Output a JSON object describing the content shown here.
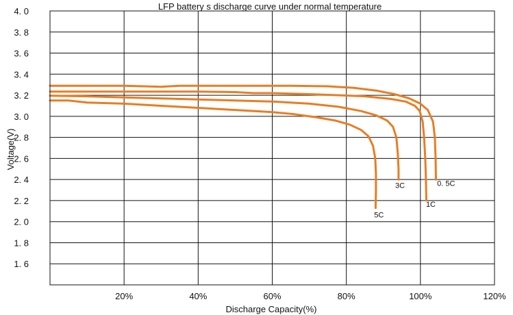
{
  "chart_data": {
    "type": "line",
    "title": "LFP battery    s discharge curve under normal temperature",
    "xlabel": "Discharge  Capacity(%)",
    "ylabel": "Voltage(V)",
    "xlim": [
      0,
      120
    ],
    "ylim": [
      1.4,
      4.0
    ],
    "x_ticks": [
      20,
      40,
      60,
      80,
      100,
      120
    ],
    "x_tick_labels": [
      "20%",
      "40%",
      "60%",
      "80%",
      "100%",
      "120%"
    ],
    "y_ticks": [
      1.6,
      1.8,
      2.0,
      2.2,
      2.4,
      2.6,
      2.8,
      3.0,
      3.2,
      3.4,
      3.6,
      3.8,
      4.0
    ],
    "y_tick_labels": [
      "1. 6",
      "1. 8",
      "2. 0",
      "2. 2",
      "2. 4",
      "2. 6",
      "2. 8",
      "3. 0",
      "3. 2",
      "3. 4",
      "3. 6",
      "3. 8",
      "4. 0"
    ],
    "grid": true,
    "line_color": "#e87d22",
    "series": [
      {
        "name": "0. 5C",
        "label_at": [
          104.5,
          2.34
        ],
        "points": [
          [
            0,
            3.29
          ],
          [
            10,
            3.29
          ],
          [
            20,
            3.29
          ],
          [
            30,
            3.28
          ],
          [
            35,
            3.29
          ],
          [
            45,
            3.29
          ],
          [
            55,
            3.29
          ],
          [
            65,
            3.29
          ],
          [
            75,
            3.285
          ],
          [
            82,
            3.27
          ],
          [
            88,
            3.245
          ],
          [
            93,
            3.21
          ],
          [
            97,
            3.17
          ],
          [
            100,
            3.12
          ],
          [
            102,
            3.06
          ],
          [
            103.4,
            2.95
          ],
          [
            103.9,
            2.8
          ],
          [
            104.1,
            2.6
          ],
          [
            104.2,
            2.4
          ]
        ]
      },
      {
        "name": "1C",
        "label_at": [
          101.5,
          2.14
        ],
        "points": [
          [
            0,
            3.235
          ],
          [
            10,
            3.235
          ],
          [
            20,
            3.235
          ],
          [
            30,
            3.235
          ],
          [
            40,
            3.235
          ],
          [
            50,
            3.23
          ],
          [
            55,
            3.22
          ],
          [
            60,
            3.22
          ],
          [
            70,
            3.21
          ],
          [
            78,
            3.2
          ],
          [
            85,
            3.19
          ],
          [
            92,
            3.165
          ],
          [
            96,
            3.14
          ],
          [
            98.5,
            3.1
          ],
          [
            99.8,
            3.05
          ],
          [
            100.6,
            2.95
          ],
          [
            101,
            2.8
          ],
          [
            101.3,
            2.6
          ],
          [
            101.5,
            2.4
          ],
          [
            101.6,
            2.2
          ]
        ]
      },
      {
        "name": "3C",
        "label_at": [
          93.2,
          2.32
        ],
        "points": [
          [
            0,
            3.195
          ],
          [
            10,
            3.19
          ],
          [
            20,
            3.18
          ],
          [
            30,
            3.17
          ],
          [
            40,
            3.16
          ],
          [
            50,
            3.15
          ],
          [
            60,
            3.14
          ],
          [
            70,
            3.12
          ],
          [
            78,
            3.09
          ],
          [
            84,
            3.05
          ],
          [
            88,
            3.01
          ],
          [
            91,
            2.96
          ],
          [
            92.6,
            2.9
          ],
          [
            93.5,
            2.8
          ],
          [
            93.9,
            2.65
          ],
          [
            94.1,
            2.5
          ],
          [
            94.1,
            2.4
          ]
        ]
      },
      {
        "name": "5C",
        "label_at": [
          87.5,
          2.04
        ],
        "points": [
          [
            0,
            3.15
          ],
          [
            5,
            3.15
          ],
          [
            10,
            3.13
          ],
          [
            20,
            3.12
          ],
          [
            30,
            3.1
          ],
          [
            40,
            3.08
          ],
          [
            50,
            3.06
          ],
          [
            60,
            3.04
          ],
          [
            66,
            3.02
          ],
          [
            72,
            2.99
          ],
          [
            77,
            2.96
          ],
          [
            81,
            2.92
          ],
          [
            84,
            2.87
          ],
          [
            86,
            2.81
          ],
          [
            87.2,
            2.72
          ],
          [
            87.8,
            2.6
          ],
          [
            88,
            2.45
          ],
          [
            88,
            2.3
          ],
          [
            87.9,
            2.13
          ]
        ]
      }
    ]
  }
}
